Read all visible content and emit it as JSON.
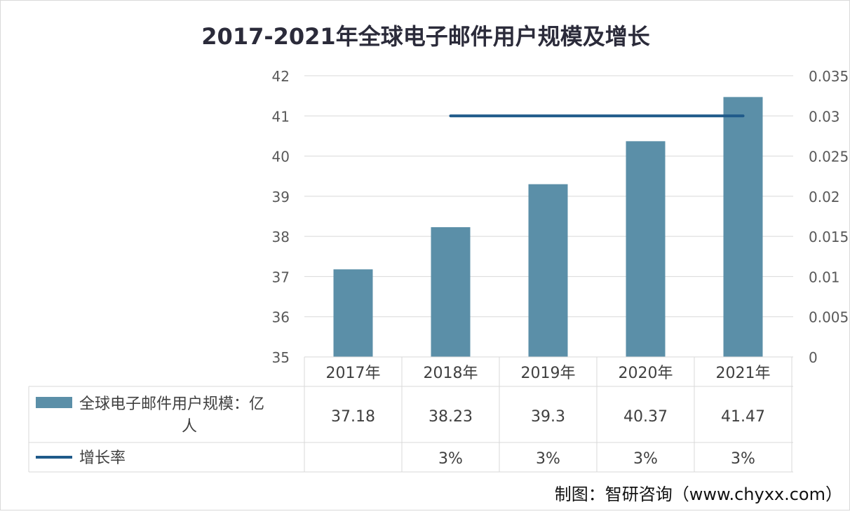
{
  "chart_data": {
    "type": "bar",
    "title": "2017-2021年全球电子邮件用户规模及增长",
    "categories": [
      "2017年",
      "2018年",
      "2019年",
      "2020年",
      "2021年"
    ],
    "series": [
      {
        "name": "全球电子邮件用户规模：亿人",
        "type": "bar",
        "axis": "left",
        "color": "#5b8fa8",
        "values": [
          37.18,
          38.23,
          39.3,
          40.37,
          41.47
        ]
      },
      {
        "name": "增长率",
        "type": "line",
        "axis": "right",
        "color": "#1f5a8a",
        "values": [
          null,
          0.03,
          0.03,
          0.03,
          0.03
        ]
      }
    ],
    "y_left": {
      "min": 35,
      "max": 42,
      "step": 1,
      "ticks": [
        "35",
        "36",
        "37",
        "38",
        "39",
        "40",
        "41",
        "42"
      ]
    },
    "y_right": {
      "min": 0,
      "max": 0.035,
      "step": 0.005,
      "ticks": [
        "0",
        "0.005",
        "0.01",
        "0.015",
        "0.02",
        "0.025",
        "0.03",
        "0.035"
      ]
    },
    "grid": true,
    "legend": "data-table",
    "data_table": {
      "rows": [
        {
          "label": "全球电子邮件用户规模：亿人",
          "cells": [
            "37.18",
            "38.23",
            "39.3",
            "40.37",
            "41.47"
          ]
        },
        {
          "label": "增长率",
          "cells": [
            "",
            "3%",
            "3%",
            "3%",
            "3%"
          ]
        }
      ]
    },
    "source": "制图：智研咨询（www.chyxx.com）"
  }
}
